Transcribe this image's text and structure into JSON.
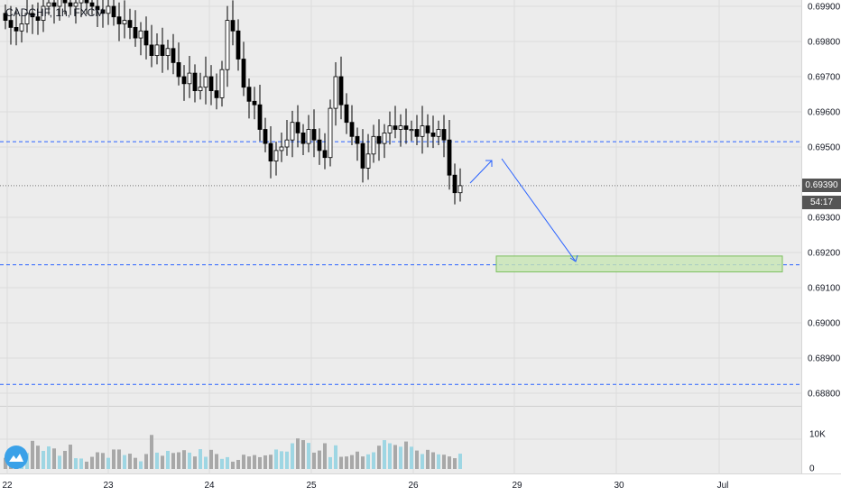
{
  "header": {
    "symbol": "CADCHF, 1h, FXCM"
  },
  "markers": {
    "last_price": "0.69390",
    "countdown": "54:17"
  },
  "colors": {
    "background": "#ececec",
    "grid": "#dcdcdc",
    "candle": "#000000",
    "volume_up": "#9ed6e3",
    "volume_down": "#a8a8a8",
    "hline": "#2962ff",
    "arrow": "#2962ff",
    "target_fill": "#c8e6b4",
    "target_border": "#7cbf5e",
    "label_bg": "#555555"
  },
  "chart_data": {
    "type": "candlestick",
    "price_ticks": [
      "0.69900",
      "0.69800",
      "0.69700",
      "0.69600",
      "0.69500",
      "0.69390",
      "0.69300",
      "0.69200",
      "0.69100",
      "0.69000",
      "0.68900",
      "0.68800"
    ],
    "x_ticks": [
      "22",
      "23",
      "24",
      "25",
      "26",
      "29",
      "30",
      "Jul"
    ],
    "volume_ticks": [
      "10K",
      "0"
    ],
    "ylim": [
      0.6878,
      0.6993
    ],
    "horizontal_levels": [
      0.69515,
      0.69165,
      0.68825
    ],
    "target_zone": {
      "from": 0.69145,
      "to": 0.6919
    },
    "close_series": [
      0.6986,
      0.6984,
      0.6983,
      0.6985,
      0.6988,
      0.6987,
      0.6986,
      0.699,
      0.6991,
      0.699,
      0.6992,
      0.6991,
      0.699,
      0.6991,
      0.6992,
      0.6991,
      0.699,
      0.6989,
      0.6988,
      0.699,
      0.6987,
      0.6985,
      0.6986,
      0.6984,
      0.6981,
      0.6983,
      0.6979,
      0.6976,
      0.6979,
      0.6976,
      0.6978,
      0.6974,
      0.697,
      0.6968,
      0.6971,
      0.6966,
      0.6967,
      0.697,
      0.6966,
      0.6964,
      0.6972,
      0.6986,
      0.6983,
      0.6975,
      0.6967,
      0.6963,
      0.6962,
      0.6955,
      0.6951,
      0.6946,
      0.6949,
      0.695,
      0.6952,
      0.6957,
      0.6954,
      0.6951,
      0.6955,
      0.6952,
      0.6949,
      0.6947,
      0.6961,
      0.697,
      0.6962,
      0.6957,
      0.6953,
      0.6951,
      0.6944,
      0.6948,
      0.6953,
      0.6951,
      0.6954,
      0.6956,
      0.6955,
      0.6956,
      0.6955,
      0.6955,
      0.6953,
      0.6956,
      0.6954,
      0.6953,
      0.6955,
      0.6952,
      0.6942,
      0.6937,
      0.6939
    ],
    "volume_series": [
      3.2,
      3.8,
      4.5,
      3.9,
      4.6,
      8.1,
      6.7,
      5.2,
      6.5,
      5.9,
      3.8,
      5.2,
      7.0,
      3.1,
      3.0,
      2.1,
      3.5,
      4.8,
      4.6,
      3.2,
      5.6,
      5.6,
      4.0,
      4.4,
      3.2,
      2.2,
      4.3,
      9.8,
      4.7,
      3.8,
      5.2,
      4.6,
      4.8,
      5.4,
      4.7,
      3.6,
      5.7,
      3.5,
      5.5,
      4.3,
      2.9,
      3.4,
      2.1,
      2.6,
      4.1,
      3.6,
      4.0,
      3.4,
      3.9,
      4.1,
      5.6,
      5.1,
      5.0,
      7.4,
      8.8,
      8.3,
      7.5,
      4.7,
      5.3,
      7.4,
      3.4,
      6.8,
      3.5,
      3.6,
      4.0,
      5.0,
      3.6,
      4.2,
      4.8,
      6.7,
      8.3,
      7.4,
      6.9,
      6.4,
      7.9,
      6.4,
      5.3,
      4.3,
      5.5,
      4.8,
      4.2,
      4.1,
      3.6,
      3.1,
      4.4
    ]
  }
}
